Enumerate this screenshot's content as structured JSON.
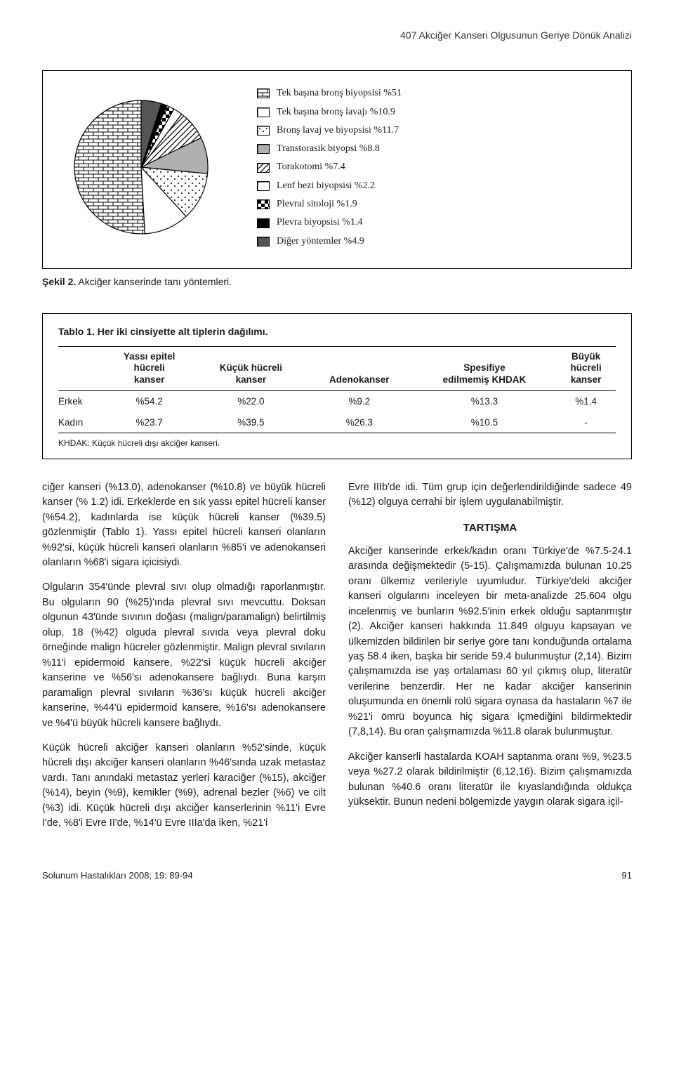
{
  "header": {
    "running_title": "407 Akciğer Kanseri Olgusunun Geriye Dönük Analizi"
  },
  "figure": {
    "caption_label": "Şekil 2.",
    "caption_text": "Akciğer kanserinde tanı yöntemleri.",
    "pie": {
      "slices": [
        {
          "label": "Tek başına bronş biyopsisi %51",
          "value": 51,
          "pattern": "brick"
        },
        {
          "label": "Tek başına bronş lavajı %10.9",
          "value": 10.9,
          "pattern": "white"
        },
        {
          "label": "Bronş lavaj ve biyopsisi %11.7",
          "value": 11.7,
          "pattern": "dots"
        },
        {
          "label": "Transtorasik biyopsi %8.8",
          "value": 8.8,
          "pattern": "gray"
        },
        {
          "label": "Torakotomi %7.4",
          "value": 7.4,
          "pattern": "diag"
        },
        {
          "label": "Lenf bezi biyopsisi %2.2",
          "value": 2.2,
          "pattern": "white"
        },
        {
          "label": "Plevral sitoloji %1.9",
          "value": 1.9,
          "pattern": "checker"
        },
        {
          "label": "Plevra biyopsisi %1.4",
          "value": 1.4,
          "pattern": "black"
        },
        {
          "label": "Diğer yöntemler %4.9",
          "value": 4.9,
          "pattern": "darkgray"
        }
      ]
    }
  },
  "table": {
    "title": "Tablo 1. Her iki cinsiyette alt tiplerin dağılımı.",
    "columns": [
      "",
      "Yassı epitel\nhücreli\nkanser",
      "Küçük hücreli\nkanser",
      "Adenokanser",
      "Spesifiye\nedilmemiş KHDAK",
      "Büyük\nhücreli\nkanser"
    ],
    "rows": [
      [
        "Erkek",
        "%54.2",
        "%22.0",
        "%9.2",
        "%13.3",
        "%1.4"
      ],
      [
        "Kadın",
        "%23.7",
        "%39.5",
        "%26.3",
        "%10.5",
        "-"
      ]
    ],
    "footnote": "KHDAK: Küçük hücreli dışı akciğer kanseri."
  },
  "body": {
    "left": [
      "ciğer kanseri (%13.0), adenokanser (%10.8) ve büyük hücreli kanser (% 1.2) idi. Erkeklerde en sık yassı epitel hücreli kanser (%54.2), kadınlarda ise küçük hücreli kanser (%39.5) gözlenmiştir (Tablo 1). Yassı epitel hücreli kanseri olanların %92'si, küçük hücreli kanseri olanların %85'i ve adenokanseri olanların %68'i sigara içicisiydi.",
      "Olguların 354'ünde plevral sıvı olup olmadığı raporlanmıştır. Bu olguların 90 (%25)'ında plevral sıvı mevcuttu. Doksan olgunun 43'ünde sıvının doğası (malign/paramalign) belirtilmiş olup, 18 (%42) olguda plevral sıvıda veya plevral doku örneğinde malign hücreler gözlenmiştir. Malign plevral sıvıların %11'i epidermoid kansere, %22'si küçük hücreli akciğer kanserine ve %56'sı adenokansere bağlıydı. Buna karşın paramalign plevral sıvıların %36'sı küçük hücreli akciğer kanserine, %44'ü epidermoid kansere, %16'sı adenokansere ve %4'ü büyük hücreli kansere bağlıydı.",
      "Küçük hücreli akciğer kanseri olanların %52'sinde, küçük hücreli dışı akciğer kanseri olanların %46'sında uzak metastaz vardı. Tanı anındaki metastaz yerleri karaciğer (%15), akciğer (%14), beyin (%9), kemikler (%9), adrenal bezler (%6) ve cilt (%3) idi. Küçük hücreli dışı akciğer kanserlerinin %11'i Evre I'de, %8'i Evre II'de, %14'ü Evre IIIa'da iken, %21'i"
    ],
    "right_intro": "Evre IIIb'de idi. Tüm grup için değerlendirildiğinde sadece 49 (%12) olguya cerrahi bir işlem uygulanabilmiştir.",
    "right_heading": "TARTIŞMA",
    "right": [
      "Akciğer kanserinde erkek/kadın oranı Türkiye'de %7.5-24.1 arasında değişmektedir (5-15). Çalışmamızda bulunan 10.25 oranı ülkemiz verileriyle uyumludur. Türkiye'deki akciğer kanseri olgularını inceleyen bir meta-analizde 25.604 olgu incelenmiş ve bunların %92.5'inin erkek olduğu saptanmıştır (2). Akciğer kanseri hakkında 11.849 olguyu kapsayan ve ülkemizden bildirilen bir seriye göre tanı konduğunda ortalama yaş 58.4 iken, başka bir seride 59.4 bulunmuştur (2,14). Bizim çalışmamızda ise yaş ortalaması 60 yıl çıkmış olup, literatür verilerine benzerdir. Her ne kadar akciğer kanserinin oluşumunda en önemli rolü sigara oynasa da hastaların %7 ile %21'i ömrü boyunca hiç sigara içmediğini bildirmektedir (7,8,14). Bu oran çalışmamızda %11.8 olarak bulunmuştur.",
      "Akciğer kanserli hastalarda KOAH saptanma oranı %9, %23.5 veya %27.2 olarak bildirilmiştir (6,12,16). Bizim çalışmamızda bulunan %40.6 oranı literatür ile kıyaslandığında oldukça yüksektir. Bunun nedeni bölgemizde yaygın olarak sigara içil-"
    ]
  },
  "footer": {
    "journal": "Solunum Hastalıkları 2008; 19: 89-94",
    "page": "91"
  }
}
